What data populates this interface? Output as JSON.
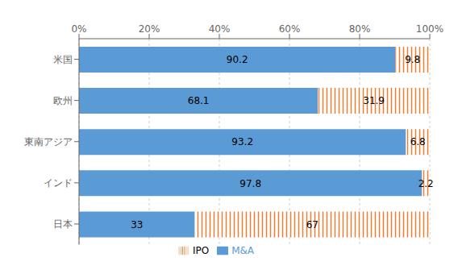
{
  "chart_data": {
    "type": "bar",
    "orientation": "horizontal",
    "stacked": true,
    "categories": [
      "米国",
      "欧州",
      "東南アジア",
      "インド",
      "日本"
    ],
    "series": [
      {
        "name": "M&A",
        "color": "#5B9BD5",
        "values": [
          90.2,
          68.1,
          93.2,
          97.8,
          33.0
        ]
      },
      {
        "name": "IPO",
        "color": "#ED7D31",
        "values": [
          9.8,
          31.9,
          6.8,
          2.2,
          67.0
        ]
      }
    ],
    "xlim": [
      0,
      100
    ],
    "xticks": [
      {
        "value": 0,
        "label": "0%"
      },
      {
        "value": 20,
        "label": "20%"
      },
      {
        "value": 40,
        "label": "40%"
      },
      {
        "value": 60,
        "label": "60%"
      },
      {
        "value": 80,
        "label": "80%"
      },
      {
        "value": 100,
        "label": "100%"
      }
    ],
    "grid": true,
    "data_labels": true,
    "legend": "bottom"
  }
}
